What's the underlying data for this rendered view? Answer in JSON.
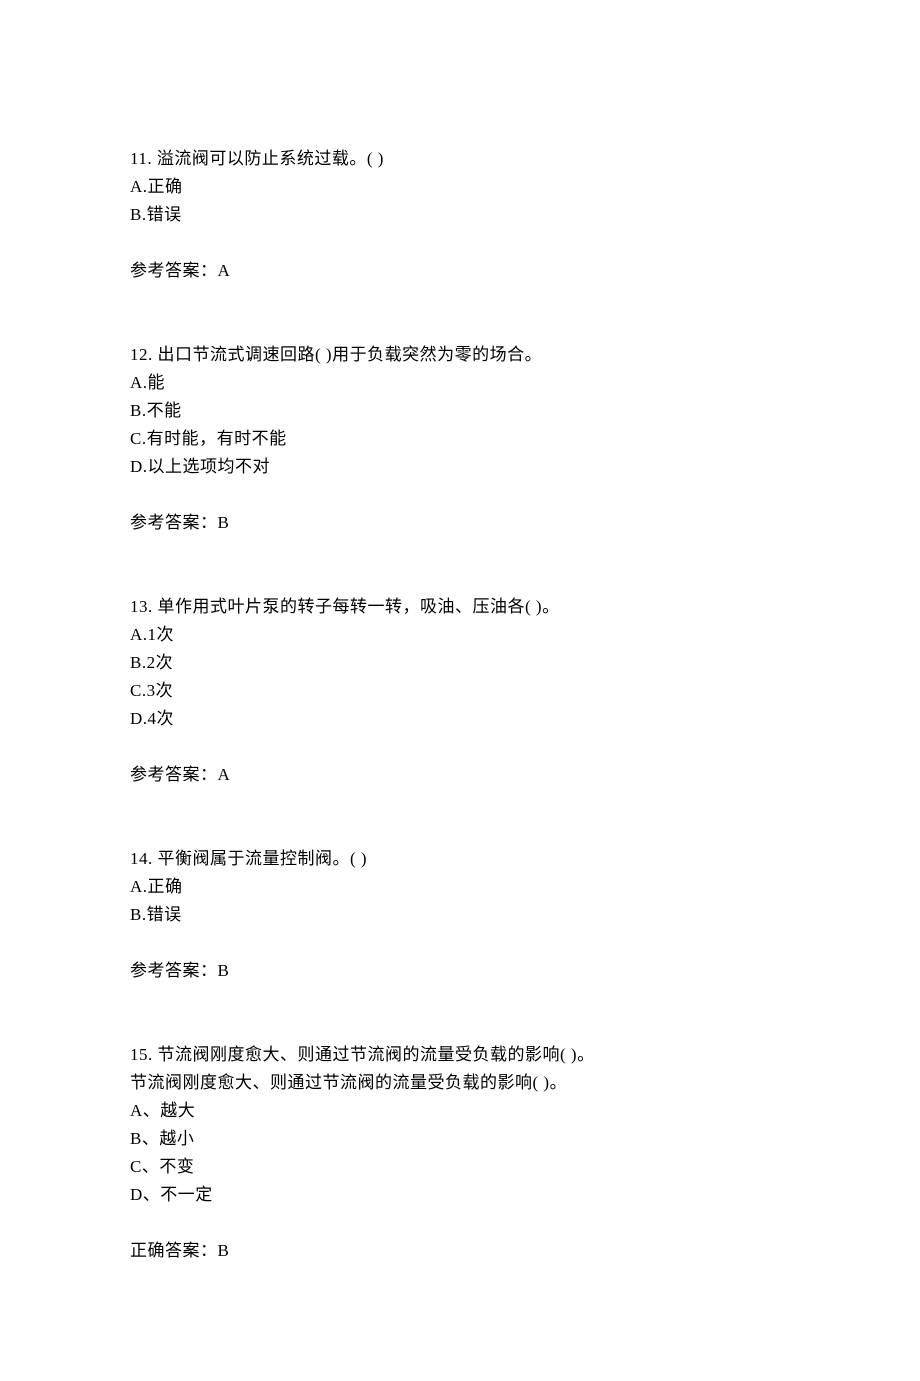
{
  "questions": [
    {
      "number": "11. ",
      "text": "溢流阀可以防止系统过载。(  )",
      "options": [
        "A.正确",
        "B.错误"
      ],
      "answer_label": "参考答案：",
      "answer": "A"
    },
    {
      "number": "12. ",
      "text": "出口节流式调速回路(  )用于负载突然为零的场合。",
      "options": [
        "A.能",
        "B.不能",
        "C.有时能，有时不能",
        "D.以上选项均不对"
      ],
      "answer_label": "参考答案：",
      "answer": "B"
    },
    {
      "number": "13. ",
      "text": "单作用式叶片泵的转子每转一转，吸油、压油各(  )。",
      "options": [
        "A.1次",
        "B.2次",
        "C.3次",
        "D.4次"
      ],
      "answer_label": "参考答案：",
      "answer": "A"
    },
    {
      "number": "14. ",
      "text": "平衡阀属于流量控制阀。(  )",
      "options": [
        "A.正确",
        "B.错误"
      ],
      "answer_label": "参考答案：",
      "answer": "B"
    },
    {
      "number": "15. ",
      "text": "节流阀刚度愈大、则通过节流阀的流量受负载的影响( )。",
      "sub_text": "节流阀刚度愈大、则通过节流阀的流量受负载的影响( )。",
      "options": [
        "A、越大",
        "B、越小",
        "C、不变",
        "D、不一定"
      ],
      "answer_label": "正确答案：",
      "answer": "B"
    }
  ]
}
